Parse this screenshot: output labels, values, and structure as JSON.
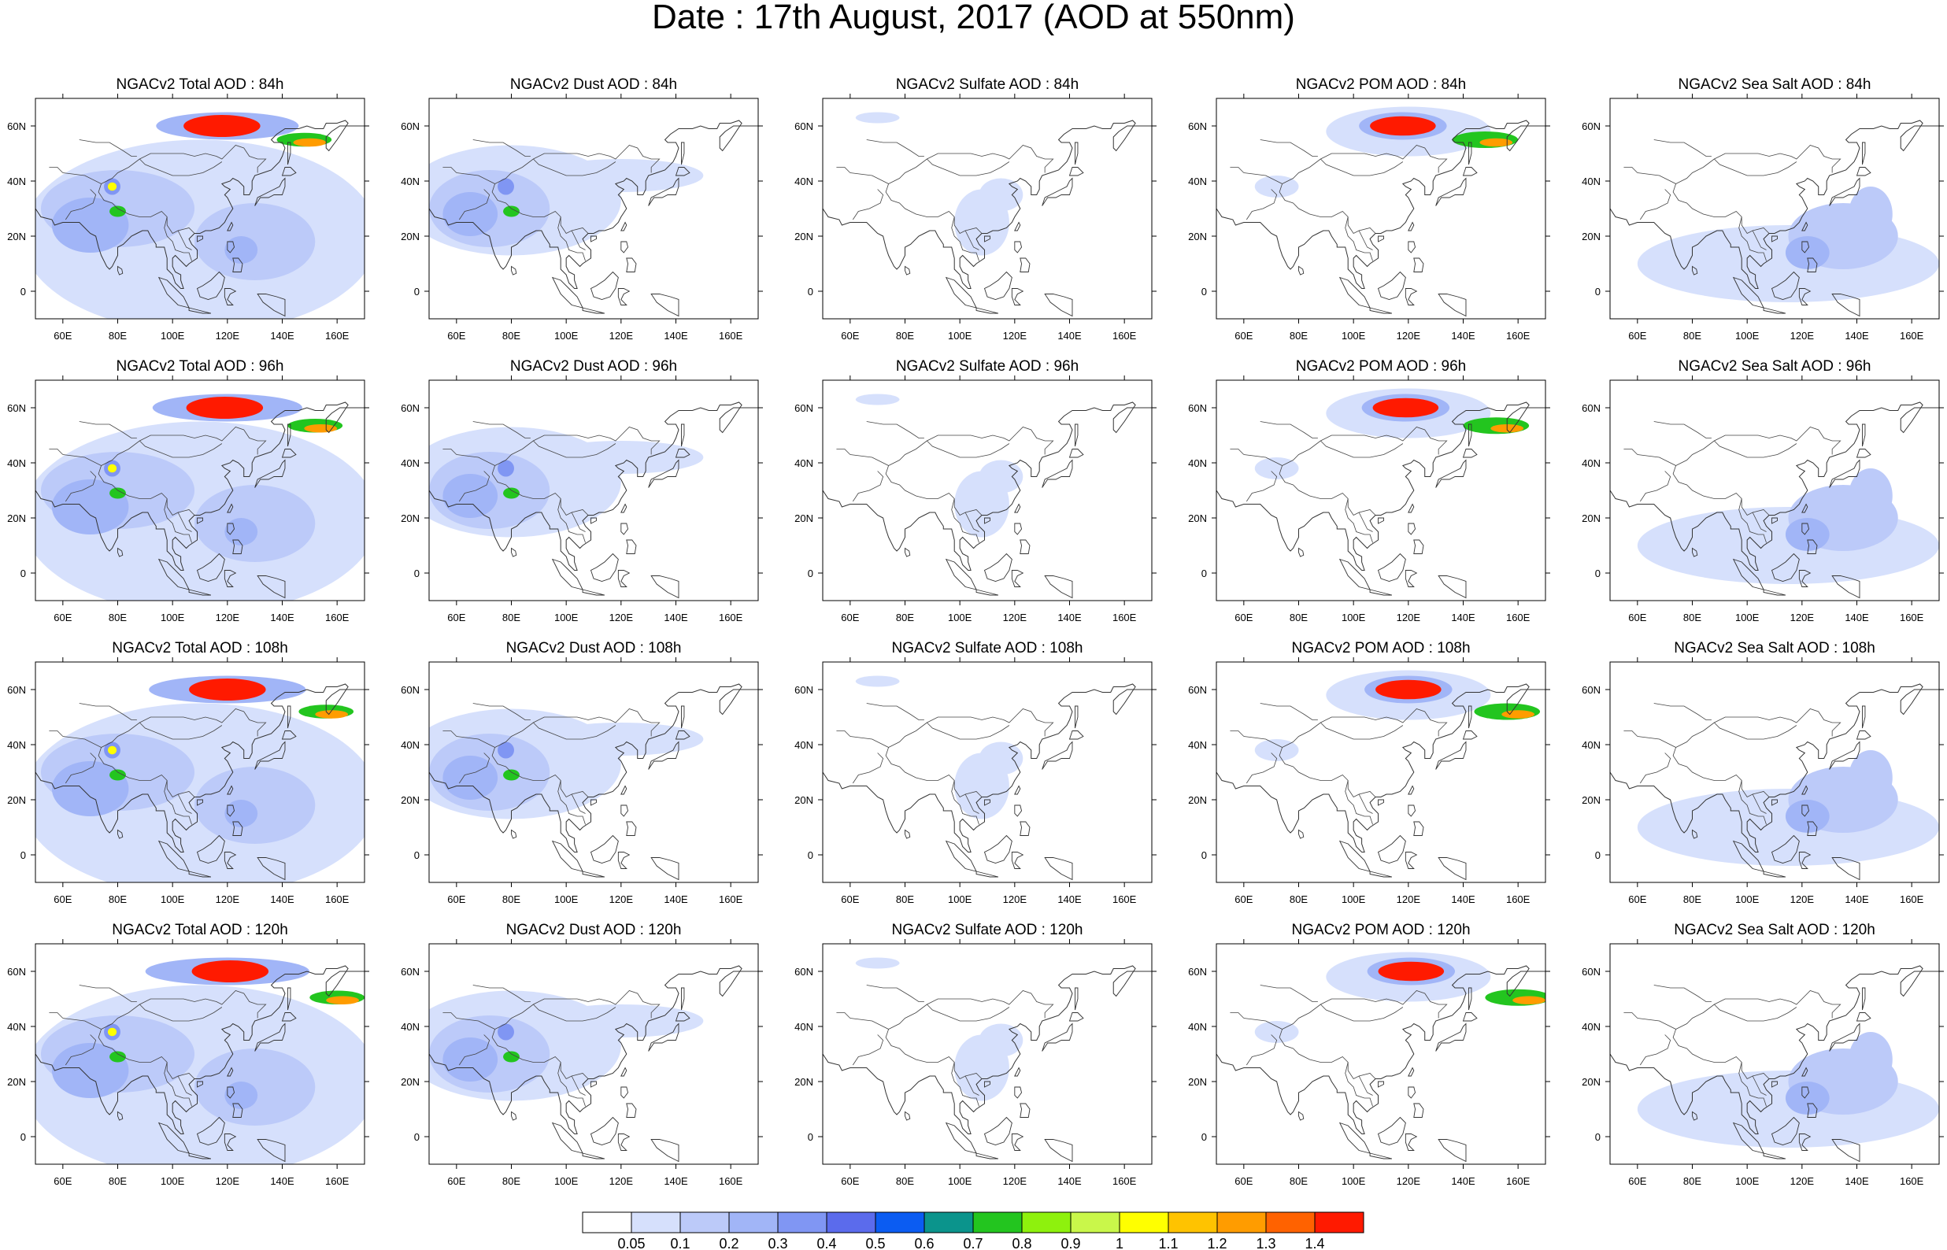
{
  "title": "Date : 17th August, 2017 (AOD at 550nm)",
  "map": {
    "lon_range": [
      50,
      170
    ],
    "lat_range": [
      -10,
      70
    ],
    "lon_ticks": [
      "60E",
      "80E",
      "100E",
      "120E",
      "140E",
      "160E"
    ],
    "lat_ticks": [
      "60N",
      "40N",
      "20N",
      "0"
    ]
  },
  "rows": [
    {
      "hour": "84h",
      "titles": [
        "NGACv2 Total AOD : 84h",
        "NGACv2 Dust AOD : 84h",
        "NGACv2 Sulfate AOD : 84h",
        "NGACv2 POM AOD : 84h",
        "NGACv2 Sea Salt AOD : 84h"
      ]
    },
    {
      "hour": "96h",
      "titles": [
        "NGACv2 Total AOD : 96h",
        "NGACv2 Dust AOD : 96h",
        "NGACv2 Sulfate AOD : 96h",
        "NGACv2 POM AOD : 96h",
        "NGACv2 Sea Salt AOD : 96h"
      ]
    },
    {
      "hour": "108h",
      "titles": [
        "NGACv2 Total AOD : 108h",
        "NGACv2 Dust AOD : 108h",
        "NGACv2 Sulfate AOD : 108h",
        "NGACv2 POM AOD : 108h",
        "NGACv2 Sea Salt AOD : 108h"
      ]
    },
    {
      "hour": "120h",
      "titles": [
        "NGACv2 Total AOD : 120h",
        "NGACv2 Dust AOD : 120h",
        "NGACv2 Sulfate AOD : 120h",
        "NGACv2 POM AOD : 120h",
        "NGACv2 Sea Salt  AOD : 120h"
      ]
    }
  ],
  "colorbar": {
    "labels": [
      "0.05",
      "0.1",
      "0.2",
      "0.3",
      "0.4",
      "0.5",
      "0.6",
      "0.7",
      "0.8",
      "0.9",
      "1",
      "1.1",
      "1.2",
      "1.3",
      "1.4"
    ],
    "colors": [
      "#ffffff",
      "#d6e0fc",
      "#bccaf9",
      "#a1b5f7",
      "#8096f3",
      "#5b6bec",
      "#0b5cf2",
      "#0b948c",
      "#23c51f",
      "#8ef10d",
      "#c9f74a",
      "#ffff00",
      "#ffc300",
      "#ff9c00",
      "#ff6200",
      "#ff1a00"
    ]
  },
  "features": {
    "plume_colors": {
      "light": "#d6e0fc",
      "pale": "#bccaf9",
      "mid": "#a1b5f7",
      "strong": "#8096f3",
      "deep": "#5b6bec",
      "green": "#23c51f",
      "yellow": "#ffff00",
      "orange": "#ff9c00",
      "red": "#ff1a00"
    }
  }
}
